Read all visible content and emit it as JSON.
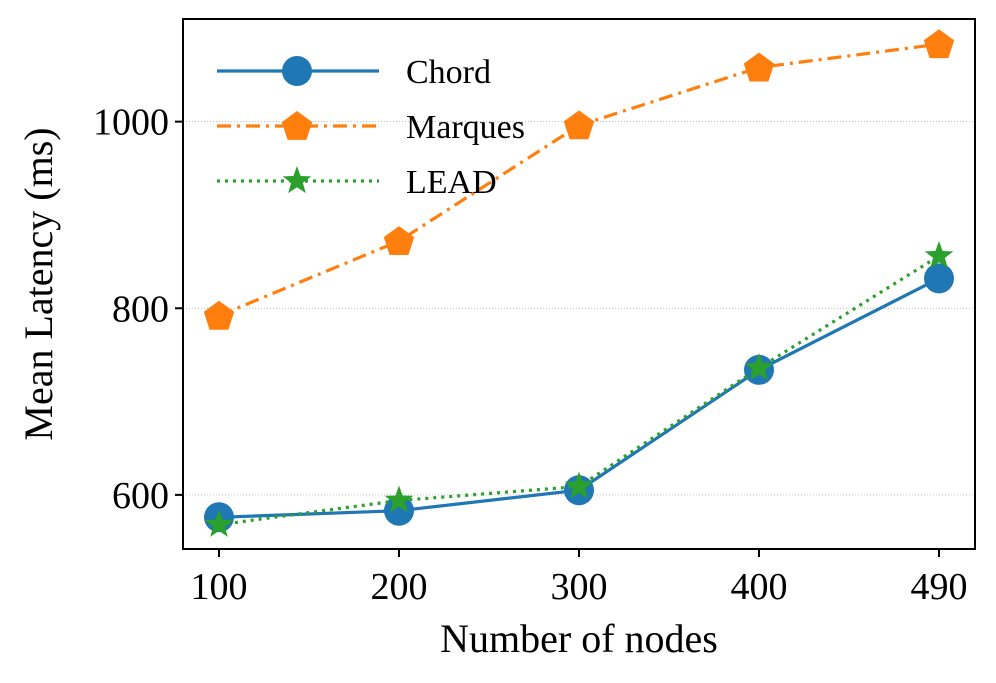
{
  "chart_data": {
    "type": "line",
    "title": "",
    "xlabel": "Number of nodes",
    "ylabel": "Mean Latency (ms)",
    "categories": [
      "100",
      "200",
      "300",
      "400",
      "490"
    ],
    "yticks": [
      600,
      800,
      1000
    ],
    "ylim": [
      542,
      1110
    ],
    "grid": true,
    "legend_position": "top-left",
    "series": [
      {
        "name": "Chord",
        "color": "#1f77b4",
        "line_style": "solid",
        "marker": "circle",
        "values": [
          576,
          583,
          605,
          734,
          832
        ]
      },
      {
        "name": "Marques",
        "color": "#ff7f0e",
        "line_style": "dash-dot",
        "marker": "pentagon",
        "values": [
          792,
          872,
          996,
          1058,
          1083
        ]
      },
      {
        "name": "LEAD",
        "color": "#2ca02c",
        "line_style": "dotted",
        "marker": "star",
        "values": [
          568,
          594,
          609,
          736,
          856
        ]
      }
    ]
  }
}
